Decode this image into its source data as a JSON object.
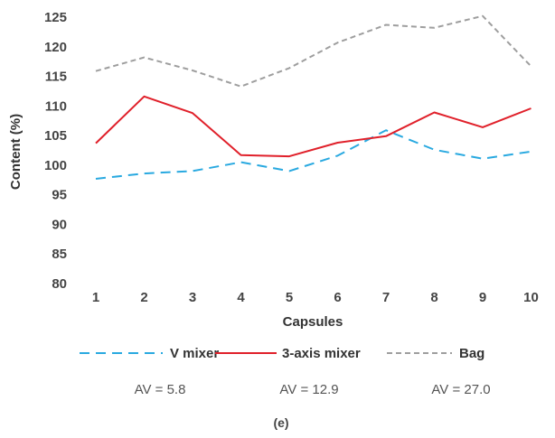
{
  "chart_data": {
    "type": "line",
    "xlabel": "Capsules",
    "ylabel": "Content (%)",
    "x": [
      1,
      2,
      3,
      4,
      5,
      6,
      7,
      8,
      9,
      10
    ],
    "ylim": [
      80,
      125
    ],
    "yticks": [
      80,
      85,
      90,
      95,
      100,
      105,
      110,
      115,
      120,
      125
    ],
    "grid": false,
    "legend": "bottom",
    "series": [
      {
        "name": "V mixer",
        "color": "#29a9e0",
        "dash": "long-dash",
        "values": [
          97.7,
          98.6,
          99.0,
          100.5,
          99.0,
          101.6,
          105.9,
          102.6,
          101.1,
          102.3
        ]
      },
      {
        "name": "3-axis mixer",
        "color": "#e0202a",
        "dash": "solid",
        "values": [
          103.7,
          111.6,
          108.8,
          101.7,
          101.5,
          103.8,
          104.9,
          108.9,
          106.4,
          109.6
        ]
      },
      {
        "name": "Bag",
        "color": "#9e9e9e",
        "dash": "short-dash",
        "values": [
          115.9,
          118.2,
          116.0,
          113.3,
          116.4,
          120.7,
          123.7,
          123.2,
          125.2,
          116.7
        ]
      }
    ],
    "annotations": [
      "AV = 5.8",
      "AV = 12.9",
      "AV = 27.0"
    ],
    "panel_label": "(e)"
  }
}
